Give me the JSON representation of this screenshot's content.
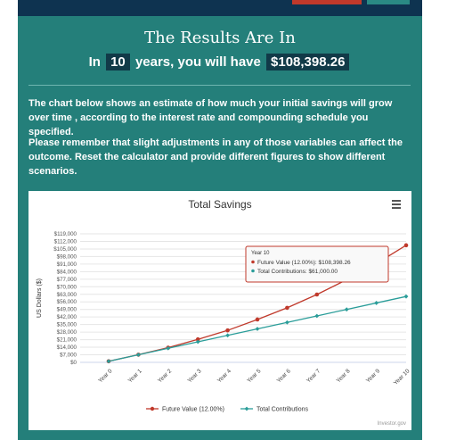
{
  "header": {
    "title": "The Results Are In",
    "prefix": "In",
    "years": "10",
    "middle": "years, you will have",
    "amount": "$108,398.26"
  },
  "paragraphs": [
    "The chart below shows an estimate of how much your initial savings will grow over time , according to the interest rate and compounding schedule you specified.",
    "Please remember that slight adjustments in any of those variables can affect the outcome. Reset the calculator and provide different figures to show different scenarios."
  ],
  "colors": {
    "future": "#c0392b",
    "contrib": "#2a9d99",
    "panel": "#247f7a"
  },
  "credit": "Investor.gov",
  "tooltip": {
    "title": "Year 10",
    "line1": "Future Value (12.00%): $108,398.26",
    "line2": "Total Contributions: $61,000.00"
  },
  "chart_data": {
    "type": "line",
    "title": "Total Savings",
    "ylabel": "US Dollars ($)",
    "x": [
      "Year 0",
      "Year 1",
      "Year 2",
      "Year 3",
      "Year 4",
      "Year 5",
      "Year 6",
      "Year 7",
      "Year 8",
      "Year 9",
      "Year 10"
    ],
    "ylim": [
      0,
      119000
    ],
    "yticks": [
      "$0",
      "$7,000",
      "$14,000",
      "$21,000",
      "$28,000",
      "$35,000",
      "$42,000",
      "$49,000",
      "$56,000",
      "$63,000",
      "$70,000",
      "$77,000",
      "$84,000",
      "$91,000",
      "$98,000",
      "$105,000",
      "$112,000",
      "$119,000"
    ],
    "ytick_values": [
      0,
      7000,
      14000,
      21000,
      28000,
      35000,
      42000,
      49000,
      56000,
      63000,
      70000,
      77000,
      84000,
      91000,
      98000,
      105000,
      112000,
      119000
    ],
    "series": [
      {
        "name": "Future Value (12.00%)",
        "values": [
          1000,
          7100,
          13600,
          21300,
          29600,
          39700,
          50500,
          62800,
          76500,
          91500,
          108398.26
        ]
      },
      {
        "name": "Total Contributions",
        "values": [
          1000,
          7000,
          13000,
          19000,
          25000,
          31000,
          37000,
          43000,
          49000,
          55000,
          61000
        ]
      }
    ],
    "legend": "bottom"
  }
}
